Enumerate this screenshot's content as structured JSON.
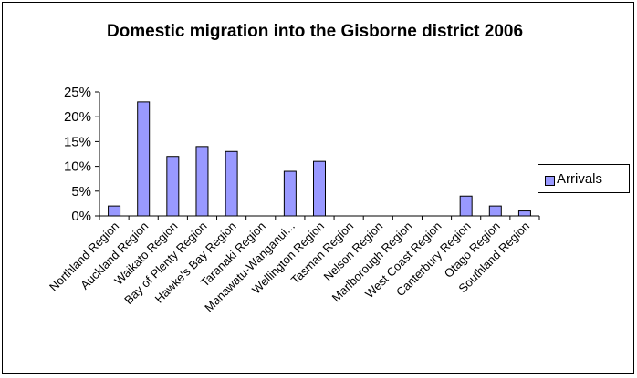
{
  "chart_data": {
    "type": "bar",
    "title": "Domestic migration into the Gisborne district 2006",
    "xlabel": "",
    "ylabel": "",
    "categories": [
      "Northland Region",
      "Auckland Region",
      "Waikato Region",
      "Bay of Plenty Region",
      "Hawke's Bay Region",
      "Taranaki Region",
      "Manawatu-Wanganui...",
      "Wellington Region",
      "Tasman Region",
      "Nelson Region",
      "Marlborough Region",
      "West Coast Region",
      "Canterbury Region",
      "Otago Region",
      "Southland Region"
    ],
    "series": [
      {
        "name": "Arrivals",
        "values": [
          2,
          23,
          12,
          14,
          13,
          0,
          9,
          11,
          0,
          0,
          0,
          0,
          4,
          2,
          1
        ]
      }
    ],
    "ylim": [
      0,
      25
    ],
    "yticks": [
      "0%",
      "5%",
      "10%",
      "15%",
      "20%",
      "25%"
    ],
    "grid": false,
    "legend": "right",
    "bar_color": "#9999ff"
  }
}
